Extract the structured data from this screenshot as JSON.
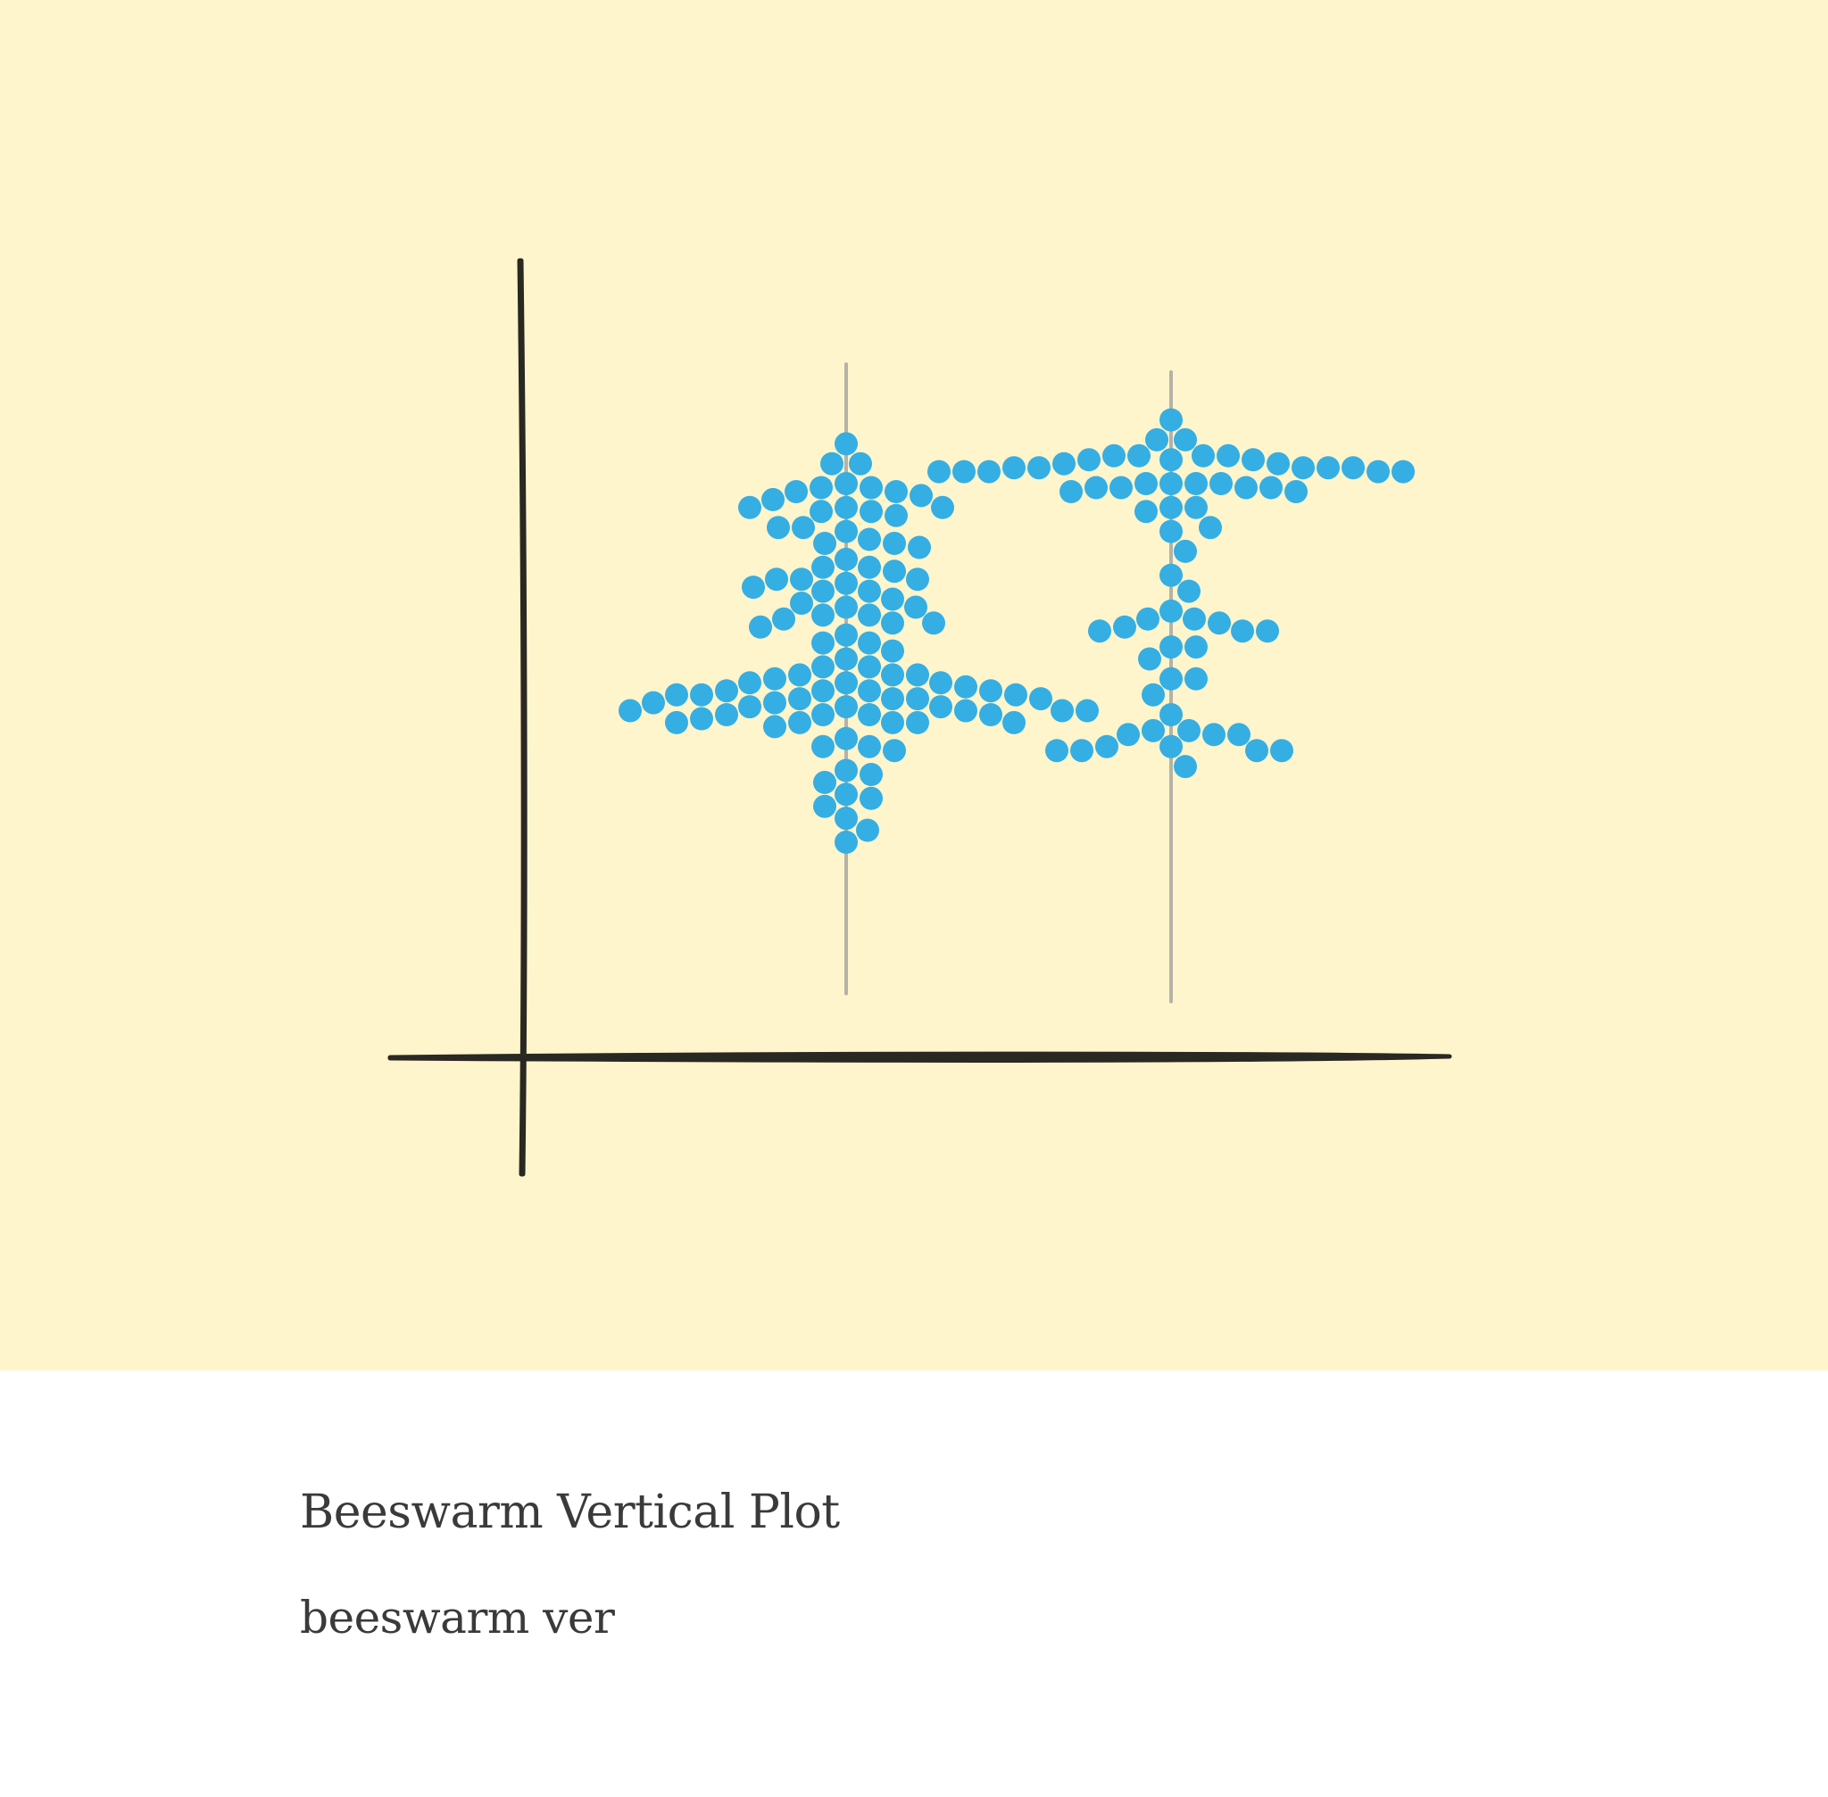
{
  "caption": {
    "title": "Beeswarm Vertical Plot",
    "subtitle": "beeswarm ver"
  },
  "colors": {
    "background": "#fff5cc",
    "axis": "#2a2822",
    "guide": "#b5b2a8",
    "point": "#35aee3",
    "caption_text": "#3a3a3a"
  },
  "chart_data": {
    "type": "scatter",
    "style": "beeswarm-vertical",
    "title": "",
    "xlabel": "",
    "ylabel": "",
    "xlim": [
      0,
      1
    ],
    "ylim": [
      0,
      1
    ],
    "grid": false,
    "series": [
      {
        "category_position": 0.35,
        "range": [
          0.08,
          0.87
        ],
        "values": [
          0.77,
          0.745,
          0.745,
          0.72,
          0.715,
          0.715,
          0.71,
          0.71,
          0.705,
          0.7,
          0.69,
          0.69,
          0.69,
          0.685,
          0.685,
          0.68,
          0.665,
          0.665,
          0.66,
          0.65,
          0.645,
          0.645,
          0.64,
          0.625,
          0.615,
          0.615,
          0.61,
          0.6,
          0.6,
          0.6,
          0.595,
          0.59,
          0.585,
          0.585,
          0.575,
          0.57,
          0.565,
          0.565,
          0.555,
          0.555,
          0.55,
          0.545,
          0.545,
          0.54,
          0.53,
          0.52,
          0.52,
          0.51,
          0.5,
          0.49,
          0.49,
          0.48,
          0.48,
          0.48,
          0.475,
          0.47,
          0.47,
          0.47,
          0.465,
          0.46,
          0.46,
          0.46,
          0.46,
          0.455,
          0.455,
          0.455,
          0.45,
          0.45,
          0.45,
          0.45,
          0.445,
          0.445,
          0.44,
          0.44,
          0.44,
          0.435,
          0.435,
          0.435,
          0.435,
          0.43,
          0.43,
          0.43,
          0.43,
          0.425,
          0.42,
          0.42,
          0.42,
          0.42,
          0.42,
          0.415,
          0.4,
          0.39,
          0.39,
          0.385,
          0.36,
          0.355,
          0.345,
          0.33,
          0.325,
          0.315,
          0.3,
          0.285,
          0.27
        ]
      },
      {
        "category_position": 0.7,
        "range": [
          0.07,
          0.86
        ],
        "values": [
          0.8,
          0.775,
          0.775,
          0.755,
          0.755,
          0.755,
          0.755,
          0.75,
          0.75,
          0.75,
          0.745,
          0.745,
          0.74,
          0.74,
          0.74,
          0.74,
          0.74,
          0.735,
          0.735,
          0.735,
          0.735,
          0.735,
          0.72,
          0.72,
          0.72,
          0.72,
          0.715,
          0.715,
          0.715,
          0.715,
          0.71,
          0.71,
          0.69,
          0.69,
          0.685,
          0.665,
          0.66,
          0.635,
          0.605,
          0.585,
          0.56,
          0.55,
          0.55,
          0.545,
          0.54,
          0.535,
          0.535,
          0.535,
          0.515,
          0.515,
          0.5,
          0.475,
          0.475,
          0.455,
          0.43,
          0.41,
          0.41,
          0.405,
          0.405,
          0.405,
          0.39,
          0.39,
          0.385,
          0.385,
          0.385,
          0.385,
          0.365
        ]
      }
    ]
  }
}
